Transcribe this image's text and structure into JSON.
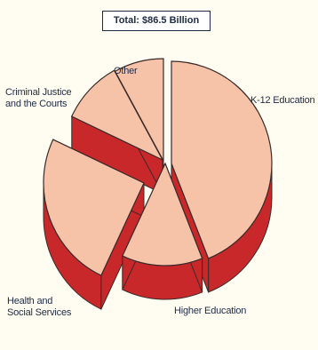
{
  "chart_data": {
    "type": "pie",
    "title": "Total:  $86.5 Billion",
    "slices": [
      {
        "label": "K-12 Education",
        "value": 44
      },
      {
        "label": "Higher Education",
        "value": 13
      },
      {
        "label": "Health and\nSocial Services",
        "value": 25
      },
      {
        "label": "Criminal Justice\nand the Courts",
        "value": 10
      },
      {
        "label": "Other",
        "value": 8
      }
    ],
    "exploded": [
      "Health and\nSocial Services"
    ],
    "colors": {
      "top": "#f7c3a8",
      "side": "#c8282a",
      "edge": "#3a2a2a"
    }
  }
}
